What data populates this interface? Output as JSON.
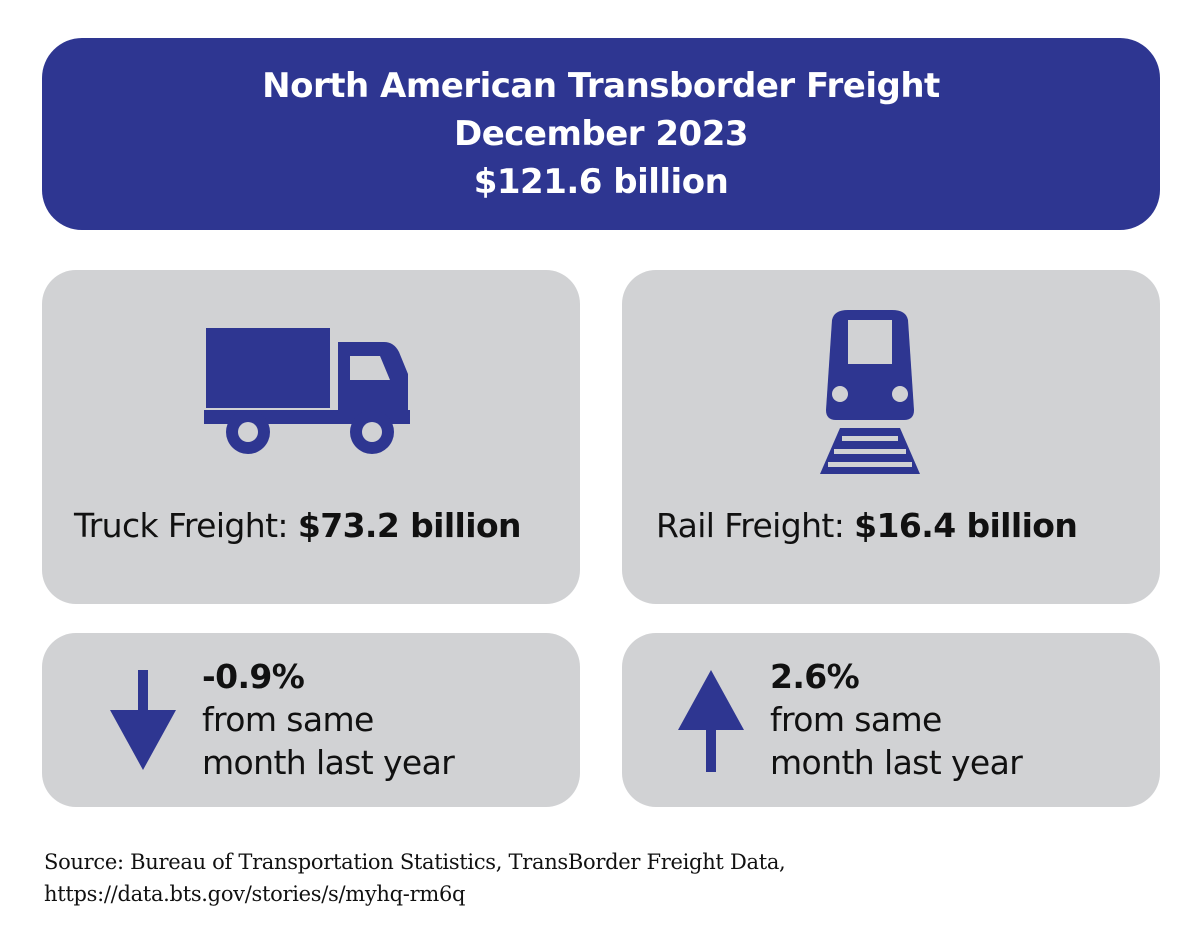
{
  "header": {
    "title": "North American Transborder Freight",
    "period": "December 2023",
    "total": "$121.6 billion"
  },
  "colors": {
    "accent": "#2e3691",
    "card_background": "#d1d2d4",
    "text": "#111111"
  },
  "truck": {
    "icon": "truck-icon",
    "label": "Truck Freight: ",
    "value": "$73.2 billion",
    "change": "-0.9%",
    "change_line1": "from same",
    "change_line2": "month last year",
    "change_icon": "arrow-down-icon"
  },
  "rail": {
    "icon": "train-icon",
    "label": "Rail Freight: ",
    "value": "$16.4 billion",
    "change": "2.6%",
    "change_line1": "from same",
    "change_line2": "month last year",
    "change_icon": "arrow-up-icon"
  },
  "source": {
    "line1": "Source: Bureau of Transportation Statistics, TransBorder Freight Data,",
    "line2": "https://data.bts.gov/stories/s/myhq-rm6q"
  }
}
